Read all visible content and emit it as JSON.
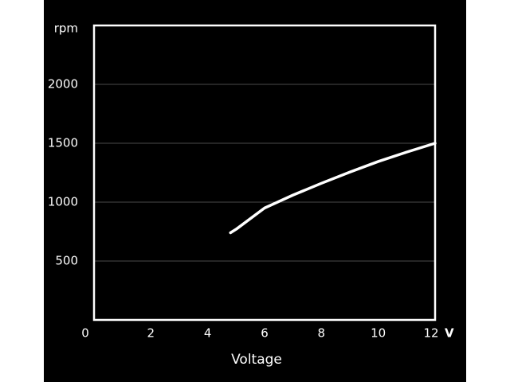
{
  "chart_data": {
    "type": "line",
    "y_label": "rpm",
    "x_label": "Voltage",
    "x_unit_label": "V",
    "x": [
      4.8,
      5,
      6,
      7,
      8,
      9,
      10,
      11,
      12
    ],
    "values": [
      740,
      770,
      950,
      1060,
      1160,
      1255,
      1345,
      1425,
      1500
    ],
    "color": "#ffffff",
    "xlim": [
      0,
      12
    ],
    "xticks": [
      0,
      2,
      4,
      6,
      8,
      10,
      12
    ],
    "ylim": [
      0,
      2500
    ],
    "yticks": [
      500,
      1000,
      1500,
      2000
    ],
    "grid": true
  }
}
